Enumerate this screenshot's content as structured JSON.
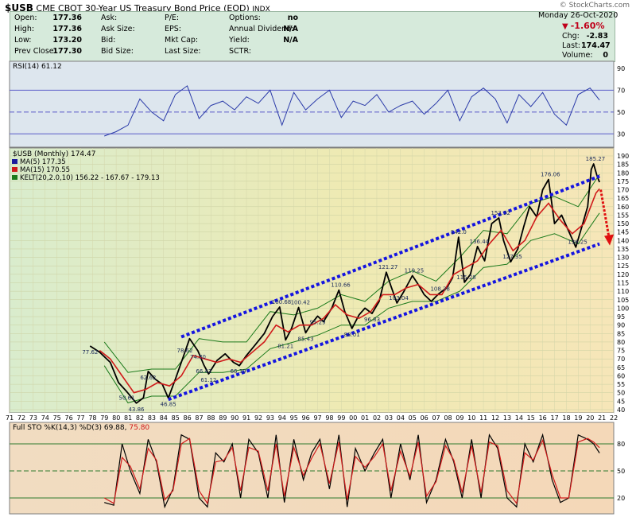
{
  "header": {
    "symbol": "$USB",
    "description": "CME CBOT 30-Year US Treasury Bond Price (EOD)",
    "exchange": "INDX",
    "watermark": "© StockCharts.com",
    "date_line": "Monday   26-Oct-2020",
    "left_stats": [
      {
        "label": "Open:",
        "value": "177.36"
      },
      {
        "label": "High:",
        "value": "177.36"
      },
      {
        "label": "Low:",
        "value": "173.20"
      },
      {
        "label": "Prev Close:",
        "value": "177.30"
      }
    ],
    "mid_labels": [
      "Ask:",
      "Ask Size:",
      "Bid:",
      "Bid Size:"
    ],
    "fund_labels": [
      "P/E:",
      "EPS:",
      "Mkt Cap:",
      "Last Size:"
    ],
    "other_stats": [
      {
        "label": "Options:",
        "value": "no"
      },
      {
        "label": "Annual Dividend:",
        "value": "N/A"
      },
      {
        "label": "Yield:",
        "value": "N/A"
      },
      {
        "label": "SCTR:",
        "value": ""
      }
    ],
    "change_pct": "-1.60%",
    "right_stats": [
      {
        "label": "Chg:",
        "value": "-2.83"
      },
      {
        "label": "Last:",
        "value": "174.47"
      },
      {
        "label": "Volume:",
        "value": "0"
      }
    ],
    "colors": {
      "quote_bg": "#d6eadb",
      "down": "#c0001a"
    }
  },
  "chart_data": [
    {
      "type": "line",
      "panel": "RSI",
      "legend": "RSI(14) 61.12",
      "ylim": [
        20,
        90
      ],
      "yticks": [
        30,
        50,
        70,
        90
      ],
      "reference_lines": [
        30,
        50,
        70
      ],
      "x": [
        1979,
        1980,
        1981,
        1982,
        1983,
        1984,
        1985,
        1986,
        1987,
        1988,
        1989,
        1990,
        1991,
        1992,
        1993,
        1994,
        1995,
        1996,
        1997,
        1998,
        1999,
        2000,
        2001,
        2002,
        2003,
        2004,
        2005,
        2006,
        2007,
        2008,
        2009,
        2010,
        2011,
        2012,
        2013,
        2014,
        2015,
        2016,
        2017,
        2018,
        2019,
        2020,
        2020.8
      ],
      "values": [
        28,
        32,
        38,
        62,
        50,
        42,
        66,
        74,
        44,
        56,
        60,
        52,
        64,
        58,
        70,
        38,
        68,
        52,
        62,
        70,
        45,
        60,
        56,
        66,
        50,
        56,
        60,
        48,
        58,
        70,
        42,
        64,
        72,
        62,
        40,
        66,
        55,
        68,
        48,
        38,
        66,
        72,
        61
      ]
    },
    {
      "type": "line",
      "panel": "price",
      "legend_title": "$USB (Monthly) 174.47",
      "legend": [
        {
          "name": "MA(5) 177.35",
          "color": "#1c1c9c"
        },
        {
          "name": "MA(15) 170.55",
          "color": "#d01a1a"
        },
        {
          "name": "KELT(20,2.0,10) 156.22 - 167.67 - 179.13",
          "color": "#1b7a1b"
        }
      ],
      "ylim": [
        40,
        190
      ],
      "yticks": [
        40,
        45,
        50,
        55,
        60,
        65,
        70,
        75,
        80,
        85,
        90,
        95,
        100,
        105,
        110,
        115,
        120,
        125,
        130,
        135,
        140,
        145,
        150,
        155,
        160,
        165,
        170,
        175,
        180,
        185,
        190
      ],
      "xlim": [
        1971,
        2022
      ],
      "x_tick_labels": [
        "71",
        "72",
        "73",
        "74",
        "75",
        "76",
        "77",
        "78",
        "79",
        "80",
        "81",
        "82",
        "83",
        "84",
        "85",
        "86",
        "87",
        "88",
        "89",
        "90",
        "91",
        "92",
        "93",
        "94",
        "95",
        "96",
        "97",
        "98",
        "99",
        "00",
        "01",
        "02",
        "03",
        "04",
        "05",
        "06",
        "07",
        "08",
        "09",
        "10",
        "11",
        "12",
        "13",
        "14",
        "15",
        "16",
        "17",
        "18",
        "19",
        "20",
        "21",
        "22"
      ],
      "series": [
        {
          "name": "price",
          "x": [
            1977.8,
            1978.6,
            1979.5,
            1980.2,
            1980.9,
            1981.7,
            1982.3,
            1982.7,
            1983.3,
            1983.9,
            1984.4,
            1985.0,
            1985.6,
            1986.2,
            1986.9,
            1987.4,
            1987.8,
            1988.5,
            1989.2,
            1989.9,
            1990.4,
            1991.0,
            1991.7,
            1992.5,
            1993.2,
            1993.8,
            1994.3,
            1994.8,
            1995.4,
            1996.0,
            1996.4,
            1997.0,
            1997.5,
            1998.2,
            1998.8,
            1999.3,
            1999.9,
            2000.5,
            2001.0,
            2001.6,
            2002.2,
            2002.8,
            2003.2,
            2003.7,
            2004.3,
            2005.0,
            2005.5,
            2006.0,
            2006.6,
            2007.2,
            2007.9,
            2008.4,
            2008.9,
            2009.4,
            2009.9,
            2010.5,
            2011.1,
            2011.7,
            2012.3,
            2012.7,
            2013.3,
            2013.9,
            2014.4,
            2014.9,
            2015.5,
            2016.0,
            2016.5,
            2017.0,
            2017.6,
            2018.1,
            2018.8,
            2019.3,
            2019.8,
            2020.1,
            2020.3,
            2020.6,
            2020.8
          ],
          "values": [
            77.62,
            74,
            68,
            56,
            50.61,
            43.86,
            47,
            62.62,
            58,
            55,
            46.85,
            58,
            70,
            82,
            74.8,
            66.42,
            61.12,
            69,
            73,
            68,
            66,
            72,
            78,
            85,
            95,
            100.68,
            81.21,
            88,
            100.42,
            85.43,
            90,
            95.29,
            92,
            100,
            110.66,
            98,
            88.01,
            96,
            100,
            96.83,
            104,
            121.27,
            113,
            103.04,
            110,
            119.25,
            114,
            108,
            104,
            108.38,
            112,
            118,
            142,
            115.28,
            120,
            136.44,
            128,
            150,
            153.32,
            140,
            127.35,
            135,
            148,
            160,
            154,
            170,
            176.06,
            150,
            155,
            147,
            136,
            148,
            160,
            182,
            185.27,
            178,
            174.47
          ]
        },
        {
          "name": "MA(15)",
          "x": [
            1978.6,
            1979.5,
            1980.5,
            1981.5,
            1982.5,
            1983.5,
            1984.5,
            1985.5,
            1986.5,
            1987.5,
            1988.5,
            1989.5,
            1990.5,
            1991.5,
            1992.5,
            1993.5,
            1994.5,
            1995.5,
            1996.5,
            1997.5,
            1998.5,
            1999.5,
            2000.5,
            2001.5,
            2002.5,
            2003.5,
            2004.5,
            2005.5,
            2006.5,
            2007.5,
            2008.5,
            2009.5,
            2010.5,
            2011.5,
            2012.5,
            2013.5,
            2014.5,
            2015.5,
            2016.5,
            2017.5,
            2018.5,
            2019.5,
            2020.5,
            2020.8
          ],
          "values": [
            75,
            70,
            60,
            50,
            52,
            56,
            54,
            60,
            72,
            70,
            68,
            70,
            68,
            74,
            80,
            90,
            86,
            90,
            90,
            94,
            102,
            96,
            94,
            98,
            108,
            108,
            112,
            114,
            108,
            108,
            120,
            124,
            128,
            138,
            146,
            134,
            140,
            154,
            162,
            152,
            144,
            150,
            168,
            170.55
          ]
        },
        {
          "name": "KELT upper",
          "x": [
            1979,
            1981,
            1983,
            1985,
            1987,
            1989,
            1991,
            1993,
            1995,
            1997,
            1999,
            2001,
            2003,
            2005,
            2007,
            2009,
            2011,
            2013,
            2015,
            2017,
            2019,
            2020.8
          ],
          "values": [
            80,
            62,
            64,
            64,
            82,
            80,
            80,
            98,
            96,
            100,
            108,
            104,
            116,
            122,
            116,
            130,
            146,
            144,
            162,
            166,
            160,
            179.13
          ]
        },
        {
          "name": "KELT lower",
          "x": [
            1979,
            1981,
            1983,
            1985,
            1987,
            1989,
            1991,
            1993,
            1995,
            1997,
            1999,
            2001,
            2003,
            2005,
            2007,
            2009,
            2011,
            2013,
            2015,
            2017,
            2019,
            2020.8
          ],
          "values": [
            66,
            44,
            48,
            48,
            62,
            62,
            64,
            76,
            80,
            84,
            90,
            90,
            100,
            104,
            104,
            110,
            124,
            126,
            140,
            144,
            138,
            156.22
          ]
        }
      ],
      "annotations": [
        {
          "x": 1977.8,
          "y": 77.62,
          "text": "77.62"
        },
        {
          "x": 1980.9,
          "y": 50.61,
          "text": "50.61"
        },
        {
          "x": 1981.7,
          "y": 43.86,
          "text": "43.86"
        },
        {
          "x": 1982.7,
          "y": 62.62,
          "text": "62.62"
        },
        {
          "x": 1984.4,
          "y": 46.85,
          "text": "46.85"
        },
        {
          "x": 1985.8,
          "y": 78.62,
          "text": "78.62"
        },
        {
          "x": 1986.9,
          "y": 74.8,
          "text": "74.80"
        },
        {
          "x": 1987.4,
          "y": 66.42,
          "text": "66.42"
        },
        {
          "x": 1987.8,
          "y": 61.12,
          "text": "61.12"
        },
        {
          "x": 1990.3,
          "y": 66.39,
          "text": "66.39"
        },
        {
          "x": 1993.8,
          "y": 100.68,
          "text": "100.68"
        },
        {
          "x": 1994.3,
          "y": 81.21,
          "text": "81.21"
        },
        {
          "x": 1995.4,
          "y": 100.42,
          "text": "100.42"
        },
        {
          "x": 1996.0,
          "y": 85.43,
          "text": "85.43"
        },
        {
          "x": 1997.0,
          "y": 95.29,
          "text": "95.29"
        },
        {
          "x": 1998.8,
          "y": 110.66,
          "text": "110.66"
        },
        {
          "x": 1999.9,
          "y": 88.01,
          "text": "88.01"
        },
        {
          "x": 2001.6,
          "y": 96.83,
          "text": "96.83"
        },
        {
          "x": 2002.8,
          "y": 121.27,
          "text": "121.27"
        },
        {
          "x": 2003.7,
          "y": 103.04,
          "text": "103.04"
        },
        {
          "x": 2005.0,
          "y": 119.25,
          "text": "119.25"
        },
        {
          "x": 2007.2,
          "y": 108.38,
          "text": "108.38"
        },
        {
          "x": 2008.9,
          "y": 142,
          "text": "142.0"
        },
        {
          "x": 2009.4,
          "y": 115.28,
          "text": "115.28"
        },
        {
          "x": 2010.5,
          "y": 136.44,
          "text": "136.44"
        },
        {
          "x": 2012.3,
          "y": 153.32,
          "text": "153.32"
        },
        {
          "x": 2013.3,
          "y": 127.35,
          "text": "127.35"
        },
        {
          "x": 2016.5,
          "y": 176.06,
          "text": "176.06"
        },
        {
          "x": 2018.8,
          "y": 136.25,
          "text": "136.25"
        },
        {
          "x": 2020.3,
          "y": 185.27,
          "text": "185.27"
        }
      ],
      "channel_lines": [
        {
          "x": [
            1985.5,
            2020.8
          ],
          "y": [
            83,
            178
          ]
        },
        {
          "x": [
            1984.4,
            2020.8
          ],
          "y": [
            46,
            138
          ]
        }
      ],
      "projection_arrow": {
        "x": [
          2020.9,
          2021.6
        ],
        "y": [
          170,
          138
        ]
      }
    },
    {
      "type": "line",
      "panel": "STO",
      "legend_prefix": "Full STO %K(14,3) %D(3) 69.88,",
      "legend_suffix": "75.80",
      "ylim": [
        5,
        95
      ],
      "yticks": [
        20,
        50,
        80
      ],
      "reference_lines": [
        20,
        50,
        80
      ],
      "x": [
        1979,
        1979.8,
        1980.5,
        1981.2,
        1982,
        1982.7,
        1983.4,
        1984.1,
        1984.8,
        1985.5,
        1986.2,
        1987,
        1987.7,
        1988.4,
        1989.1,
        1989.8,
        1990.5,
        1991.2,
        1992,
        1992.8,
        1993.5,
        1994.2,
        1995,
        1995.8,
        1996.5,
        1997.2,
        1998,
        1998.8,
        1999.5,
        2000.2,
        2001,
        2001.8,
        2002.5,
        2003.2,
        2004,
        2004.8,
        2005.5,
        2006.2,
        2007,
        2007.8,
        2008.5,
        2009.2,
        2010,
        2010.8,
        2011.5,
        2012.2,
        2013,
        2013.8,
        2014.5,
        2015.2,
        2016,
        2016.8,
        2017.5,
        2018.2,
        2019,
        2019.8,
        2020.3,
        2020.8
      ],
      "k": [
        15,
        12,
        80,
        50,
        25,
        85,
        60,
        10,
        30,
        90,
        85,
        20,
        10,
        70,
        60,
        80,
        20,
        85,
        70,
        20,
        90,
        15,
        85,
        40,
        70,
        85,
        30,
        90,
        10,
        75,
        50,
        70,
        85,
        20,
        80,
        40,
        90,
        15,
        40,
        85,
        60,
        20,
        85,
        20,
        90,
        75,
        20,
        10,
        80,
        60,
        90,
        40,
        15,
        20,
        90,
        85,
        80,
        69.88
      ],
      "d": [
        20,
        14,
        65,
        55,
        30,
        75,
        62,
        18,
        28,
        80,
        86,
        28,
        14,
        60,
        62,
        76,
        28,
        76,
        72,
        28,
        80,
        22,
        76,
        45,
        64,
        80,
        36,
        82,
        18,
        66,
        54,
        66,
        80,
        28,
        72,
        44,
        82,
        22,
        38,
        78,
        62,
        26,
        78,
        26,
        82,
        78,
        28,
        14,
        70,
        62,
        84,
        46,
        20,
        20,
        82,
        86,
        82,
        75.8
      ]
    }
  ]
}
